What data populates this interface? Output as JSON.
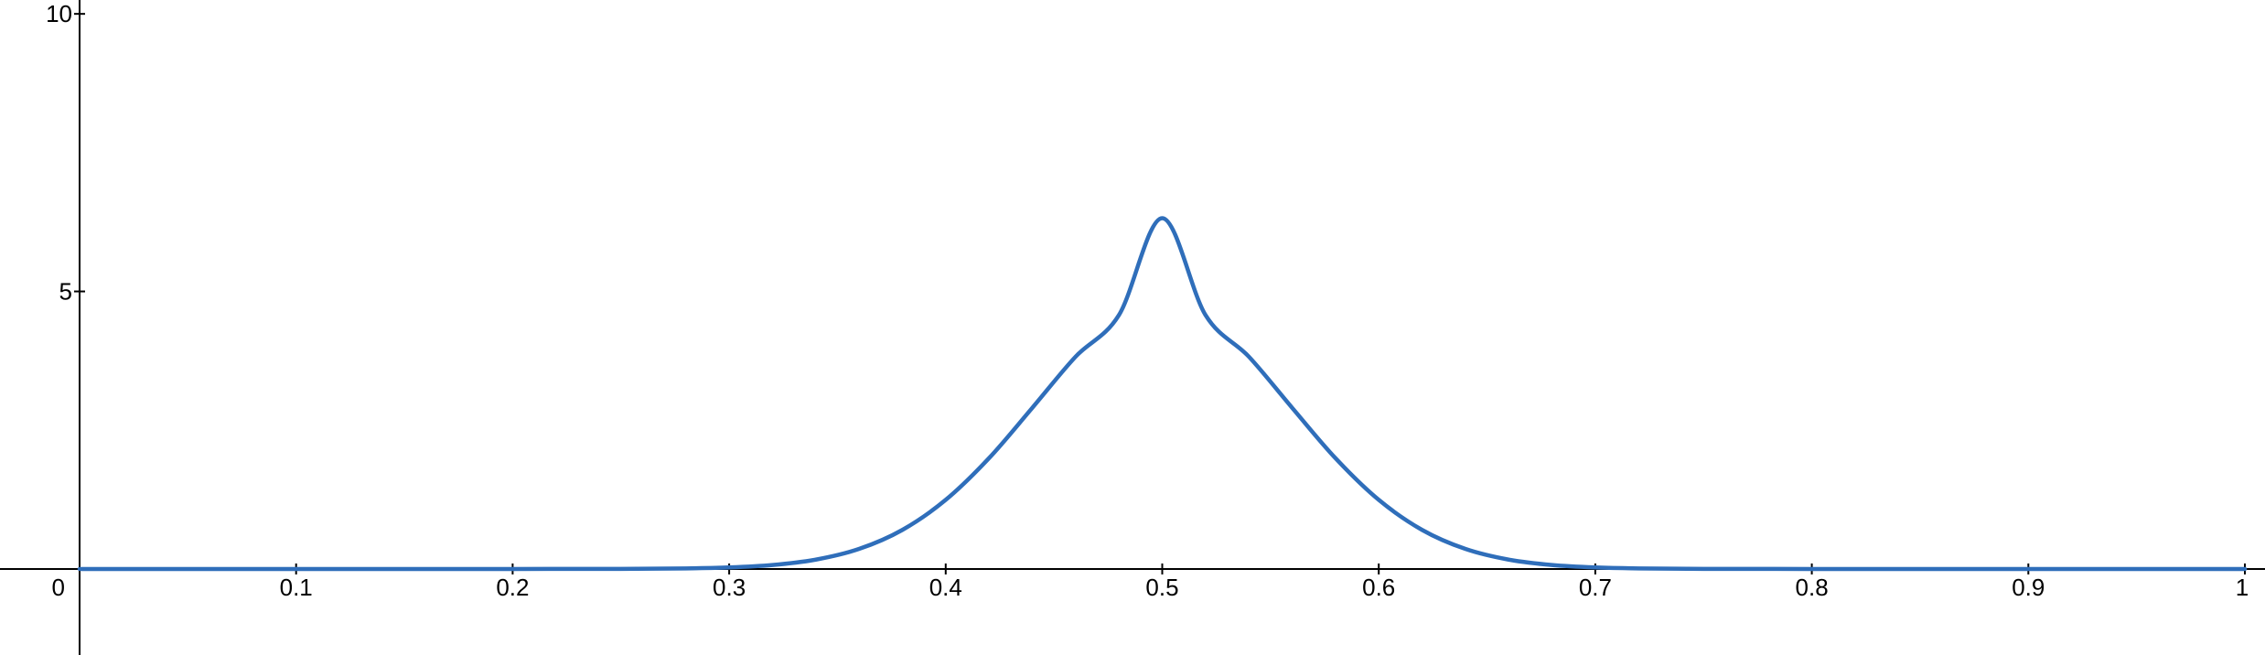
{
  "chart_data": {
    "type": "line",
    "title": "",
    "xlabel": "",
    "ylabel": "",
    "xlim": [
      0,
      1
    ],
    "ylim": [
      -1.55,
      10.25
    ],
    "grid": false,
    "x_ticks": [
      {
        "value": 0,
        "label": "0"
      },
      {
        "value": 0.1,
        "label": "0.1"
      },
      {
        "value": 0.2,
        "label": "0.2"
      },
      {
        "value": 0.3,
        "label": "0.3"
      },
      {
        "value": 0.4,
        "label": "0.4"
      },
      {
        "value": 0.5,
        "label": "0.5"
      },
      {
        "value": 0.6,
        "label": "0.6"
      },
      {
        "value": 0.7,
        "label": "0.7"
      },
      {
        "value": 0.8,
        "label": "0.8"
      },
      {
        "value": 0.9,
        "label": "0.9"
      },
      {
        "value": 1,
        "label": "1"
      }
    ],
    "y_ticks": [
      {
        "value": 5,
        "label": "5"
      },
      {
        "value": 10,
        "label": "10"
      }
    ],
    "series": [
      {
        "color": "#2f6eba",
        "x": [
          0,
          0.05,
          0.1,
          0.15,
          0.2,
          0.25,
          0.28,
          0.3,
          0.32,
          0.34,
          0.36,
          0.38,
          0.4,
          0.42,
          0.44,
          0.46,
          0.48,
          0.5,
          0.52,
          0.54,
          0.56,
          0.58,
          0.6,
          0.62,
          0.64,
          0.66,
          0.68,
          0.7,
          0.72,
          0.75,
          0.8,
          0.85,
          0.9,
          0.95,
          1
        ],
        "y": [
          0,
          0,
          0,
          0,
          0,
          0.002,
          0.01,
          0.027,
          0.071,
          0.168,
          0.361,
          0.704,
          1.245,
          1.996,
          2.903,
          3.825,
          4.574,
          6.32,
          4.574,
          3.825,
          2.903,
          1.996,
          1.245,
          0.704,
          0.361,
          0.168,
          0.071,
          0.027,
          0.01,
          0.002,
          0,
          0,
          0,
          0,
          0
        ]
      }
    ]
  }
}
